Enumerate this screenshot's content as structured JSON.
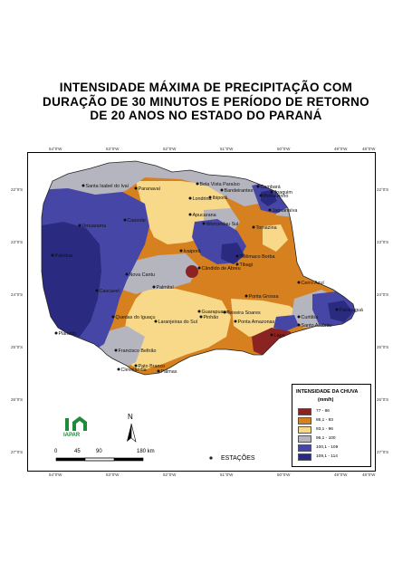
{
  "title": {
    "line1": "INTENSIDADE MÁXIMA DE PRECIPITAÇÃO COM",
    "line2": "DURAÇÃO DE 30 MINUTOS E PERÍODO DE RETORNO",
    "line3": "DE 20 ANOS NO ESTADO DO PARANÁ"
  },
  "legend": {
    "title": "INTENSIDADE DA CHUVA",
    "unit": "(mm/h)",
    "classes": [
      {
        "label": "77 - 86",
        "color": "#8b2323"
      },
      {
        "label": "86,1 - 93",
        "color": "#d7801f"
      },
      {
        "label": "93,1 - 96",
        "color": "#f8d98a"
      },
      {
        "label": "96,1 - 100",
        "color": "#b5b5bf"
      },
      {
        "label": "100,1 - 109",
        "color": "#4646a6"
      },
      {
        "label": "109,1 - 114",
        "color": "#2a2a80"
      }
    ]
  },
  "stations_label": "ESTAÇÕES",
  "scale": {
    "labels": [
      "0",
      "45",
      "90",
      "180 km"
    ]
  },
  "north": "N",
  "logo": "IAPAR",
  "top_ticks": [
    "54°0'W",
    "53°0'W",
    "52°0'W",
    "51°0'W",
    "50°0'W",
    "49°0'W",
    "48°0'W"
  ],
  "side_ticks": [
    "22°0'S",
    "23°0'S",
    "24°0'S",
    "25°0'S",
    "26°0'S",
    "27°0'S"
  ],
  "cities": [
    "Santa Isabel do Ivaí",
    "Paranavaí",
    "Bela Vista Paraíso",
    "Bandeirantes",
    "Cambará",
    "Joaquim",
    "Londrina",
    "Ibiporã",
    "Apucarana",
    "Wenceslau Sul",
    "Umuarama",
    "Cianorte",
    "Palotina",
    "Nova Cantu",
    "Ivaiporã",
    "Cândido de Abreu",
    "Telêmaco Borba",
    "Tibagi",
    "Pinhão",
    "Cascavel",
    "Pato Branco",
    "Francisco Beltrão",
    "Planalto",
    "Palmas",
    "Clevelândia",
    "Quedas do Iguaçu",
    "Laranjeiras do Sul",
    "Guarapuava",
    "Teixeira Soares",
    "Ponta Grossa",
    "Cerro Azul",
    "Ponta Amazonas",
    "Curitiba",
    "Paranaguá",
    "Lapa",
    "Santo Antônio",
    "Tomazina",
    "Pinhalzinho",
    "Jaguariaíva",
    "Palmital"
  ]
}
